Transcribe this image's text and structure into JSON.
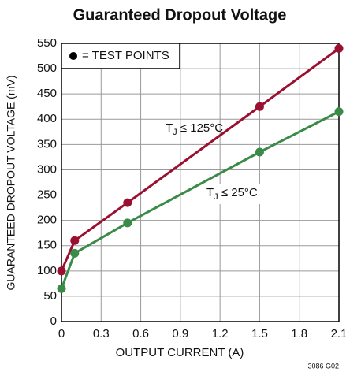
{
  "chart_data": {
    "type": "line",
    "title": "Guaranteed Dropout Voltage",
    "xlabel": "OUTPUT CURRENT (A)",
    "ylabel": "GUARANTEED DROPOUT VOLTAGE (mV)",
    "legend_text": "= TEST POINTS",
    "figure_code": "3086 G02",
    "x": [
      0,
      0.1,
      0.5,
      1.5,
      2.1
    ],
    "series": [
      {
        "label": {
          "main": "T",
          "sub": "J",
          "rest": " ≤ 125°C"
        },
        "color": "#9b1030",
        "values": [
          100,
          160,
          235,
          425,
          540
        ]
      },
      {
        "label": {
          "main": "T",
          "sub": "J",
          "rest": " ≤ 25°C"
        },
        "color": "#3a8a48",
        "values": [
          65,
          135,
          195,
          335,
          415
        ]
      }
    ],
    "xlim": [
      0,
      2.1
    ],
    "xticks": [
      0,
      0.3,
      0.6,
      0.9,
      1.2,
      1.5,
      1.8,
      2.1
    ],
    "ylim": [
      0,
      550
    ],
    "yticks": [
      0,
      50,
      100,
      150,
      200,
      250,
      300,
      350,
      400,
      450,
      500,
      550
    ],
    "grid": true
  }
}
